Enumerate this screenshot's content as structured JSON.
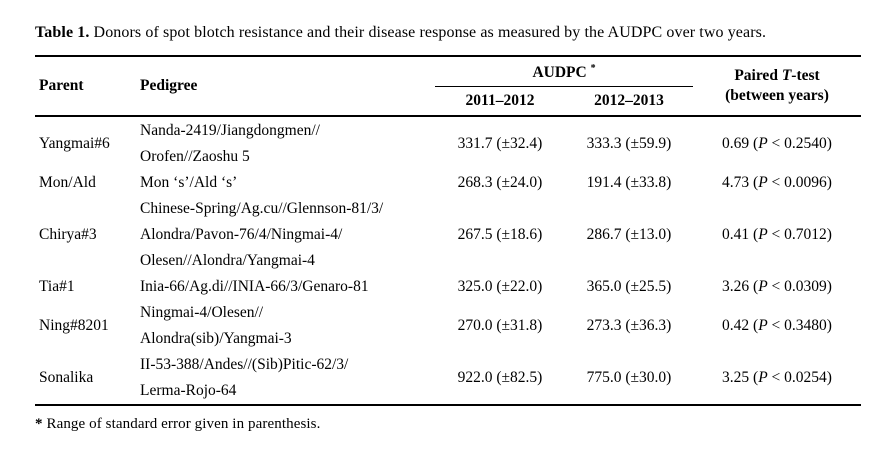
{
  "title_html": "<b>Table 1.</b> Donors of spot blotch resistance and their disease response as measured by the AUDPC  over two years.",
  "table": {
    "headers": {
      "parent": "Parent",
      "pedigree": "Pedigree",
      "audpc_html": "AUDPC <sup>*</sup>",
      "year1": "2011–2012",
      "year2": "2012–2013",
      "ttest_html": [
        "Paired <i>T</i>-test",
        "(between years)"
      ]
    },
    "rows": [
      {
        "parent": "Yangmai#6",
        "pedigree": [
          "Nanda-2419/Jiangdongmen//",
          "Orofen//Zaoshu 5"
        ],
        "audpc_2011_2012": "331.7 (±32.4)",
        "audpc_2012_2013": "333.3 (±59.9)",
        "ttest_html": "0.69 (<i>P</i> &lt; 0.2540)"
      },
      {
        "parent": "Mon/Ald",
        "pedigree": [
          "Mon ‘s’/Ald ‘s’"
        ],
        "audpc_2011_2012": "268.3 (±24.0)",
        "audpc_2012_2013": "191.4 (±33.8)",
        "ttest_html": "4.73 (<i>P</i> &lt; 0.0096)"
      },
      {
        "parent": "Chirya#3",
        "pedigree": [
          "Chinese-Spring/Ag.cu//Glennson-81/3/",
          "Alondra/Pavon-76/4/Ningmai-4/",
          "Olesen//Alondra/Yangmai-4"
        ],
        "audpc_2011_2012": "267.5 (±18.6)",
        "audpc_2012_2013": "286.7 (±13.0)",
        "ttest_html": "0.41 (<i>P</i> &lt; 0.7012)"
      },
      {
        "parent": "Tia#1",
        "pedigree": [
          "Inia-66/Ag.di//INIA-66/3/Genaro-81"
        ],
        "audpc_2011_2012": "325.0 (±22.0)",
        "audpc_2012_2013": "365.0 (±25.5)",
        "ttest_html": "3.26 (<i>P</i> &lt; 0.0309)"
      },
      {
        "parent": "Ning#8201",
        "pedigree": [
          "Ningmai-4/Olesen//",
          "Alondra(sib)/Yangmai-3"
        ],
        "audpc_2011_2012": "270.0 (±31.8)",
        "audpc_2012_2013": "273.3 (±36.3)",
        "ttest_html": "0.42 (<i>P</i> &lt; 0.3480)"
      },
      {
        "parent": "Sonalika",
        "pedigree": [
          "II-53-388/Andes//(Sib)Pitic-62/3/",
          "Lerma-Rojo-64"
        ],
        "audpc_2011_2012": "922.0 (±82.5)",
        "audpc_2012_2013": "775.0 (±30.0)",
        "ttest_html": "3.25 (<i>P</i> &lt; 0.0254)"
      }
    ],
    "footnote_html": "<b>*</b> Range of standard error given in parenthesis."
  },
  "colors": {
    "text": "#000000",
    "background": "#ffffff",
    "rule": "#000000"
  }
}
